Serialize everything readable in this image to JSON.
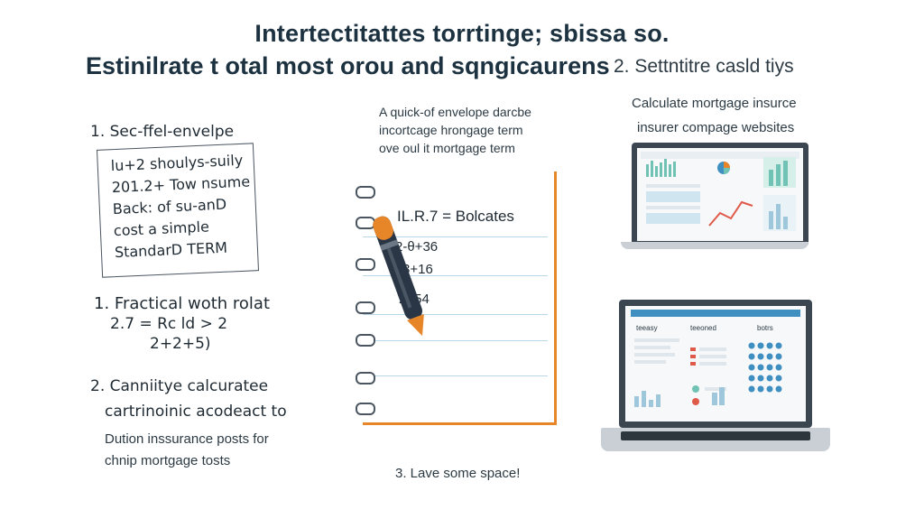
{
  "header": {
    "title_line1": "Intertectitattes torrtinge; sbissa so.",
    "title_line2": "Estinilrate t otal most orou and sqngicaurens",
    "right_step": "2. Settntitre casld tiys"
  },
  "left": {
    "step_label": "1. Sec-ffel-envelpe",
    "note_lines": [
      "lu+2 shoulys-suily",
      "201.2+ Tow nsume",
      "Back: of su-anD",
      "cost a simple",
      "StandarD TERM"
    ],
    "step2_label": "1.  Fractical woth rolat",
    "formula1": "2.7 = Rc ld > 2",
    "formula2": "2+2+5)",
    "step3_label": "2. Canniitye calcuratee",
    "step3_sub": "cartrinoinic acodeact to",
    "insurance_line1": "Dution inssurance posts for",
    "insurance_line2": "chnip mortgage tosts"
  },
  "center": {
    "caption_line1": "A quick-of envelope darcbe",
    "caption_line2": "incortcage hrongage term",
    "caption_line3": "ove oul it mortgage term",
    "pad_line1": "IL.R.7  =  Bolcates",
    "pad_line2": "2-θ+36",
    "pad_line3": "3+16",
    "pad_line4": "2+54",
    "footer": "3. Lave some space!"
  },
  "right": {
    "caption_line1": "Calculate mortgage insurce",
    "caption_line2": "insurer compage websites",
    "laptop2_tab1": "teeasy",
    "laptop2_tab2": "teeoned",
    "laptop2_tab3": "botrs"
  },
  "colors": {
    "accent_orange": "#e78628",
    "accent_teal": "#6fc2b4",
    "accent_blue": "#3f8fc1",
    "dark_ink": "#1f2a33"
  },
  "icons": [
    "spiral-ring-icon",
    "pen-icon",
    "laptop-icon",
    "pie-chart-icon",
    "bar-chart-icon",
    "calculator-keypad-icon"
  ]
}
